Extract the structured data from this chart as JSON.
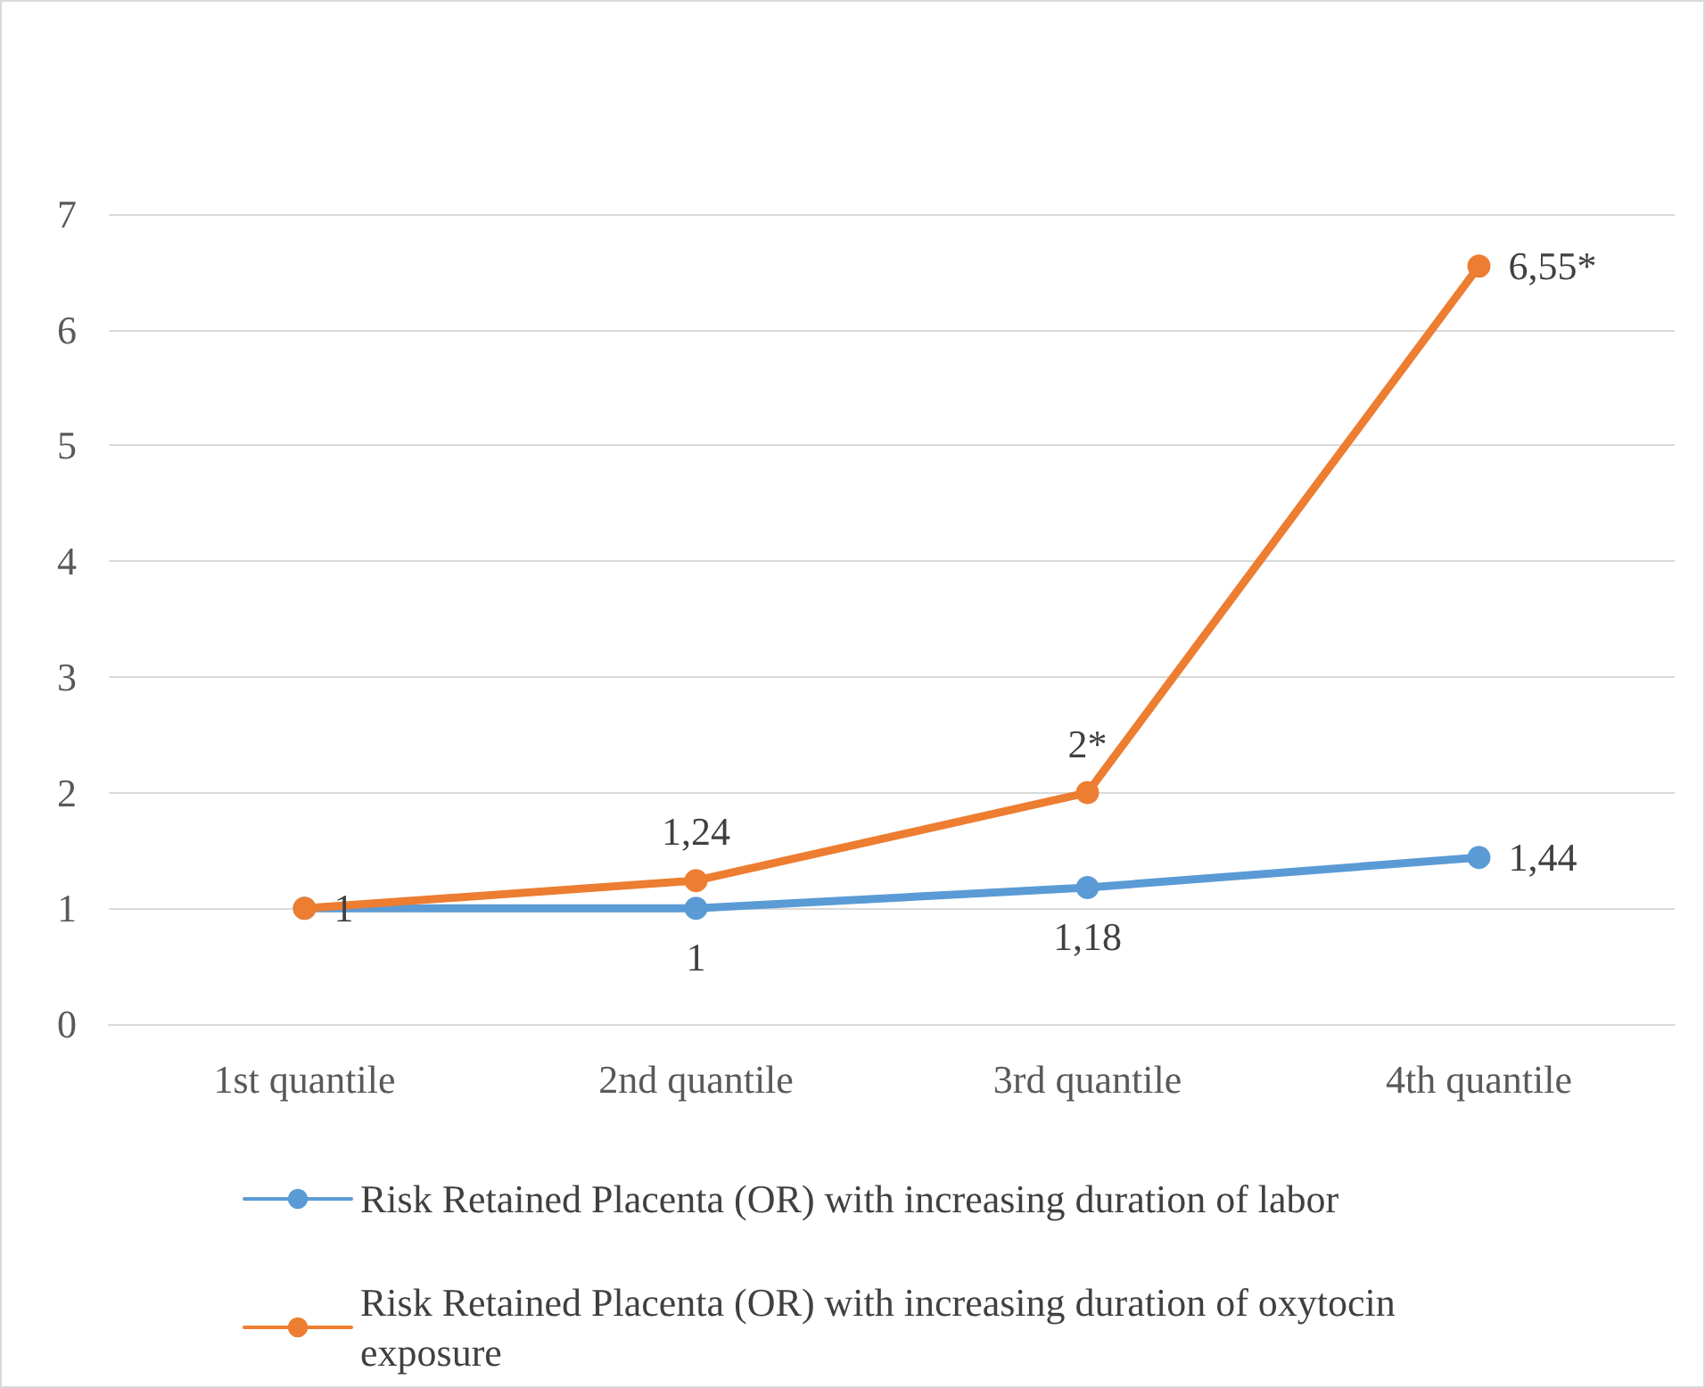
{
  "chart_data": {
    "type": "line",
    "categories": [
      "1st quantile",
      "2nd quantile",
      "3rd quantile",
      "4th quantile"
    ],
    "series": [
      {
        "name": "Risk Retained Placenta (OR) with increasing duration of labor",
        "color": "#5b9bd5",
        "values": [
          1,
          1,
          1.18,
          1.44
        ],
        "value_labels": [
          null,
          "1",
          "1,18",
          "1,44"
        ]
      },
      {
        "name": "Risk Retained Placenta (OR) with increasing duration of oxytocin exposure",
        "color": "#ed7d31",
        "values": [
          1,
          1.24,
          2,
          6.55
        ],
        "value_labels": [
          "1",
          "1,24",
          "2*",
          "6,55*"
        ]
      }
    ],
    "ylim": [
      0,
      7
    ],
    "yticks": [
      0,
      1,
      2,
      3,
      4,
      5,
      6,
      7
    ],
    "grid": "y",
    "legend": "bottom",
    "marker": "circle",
    "line_style": "solid"
  }
}
